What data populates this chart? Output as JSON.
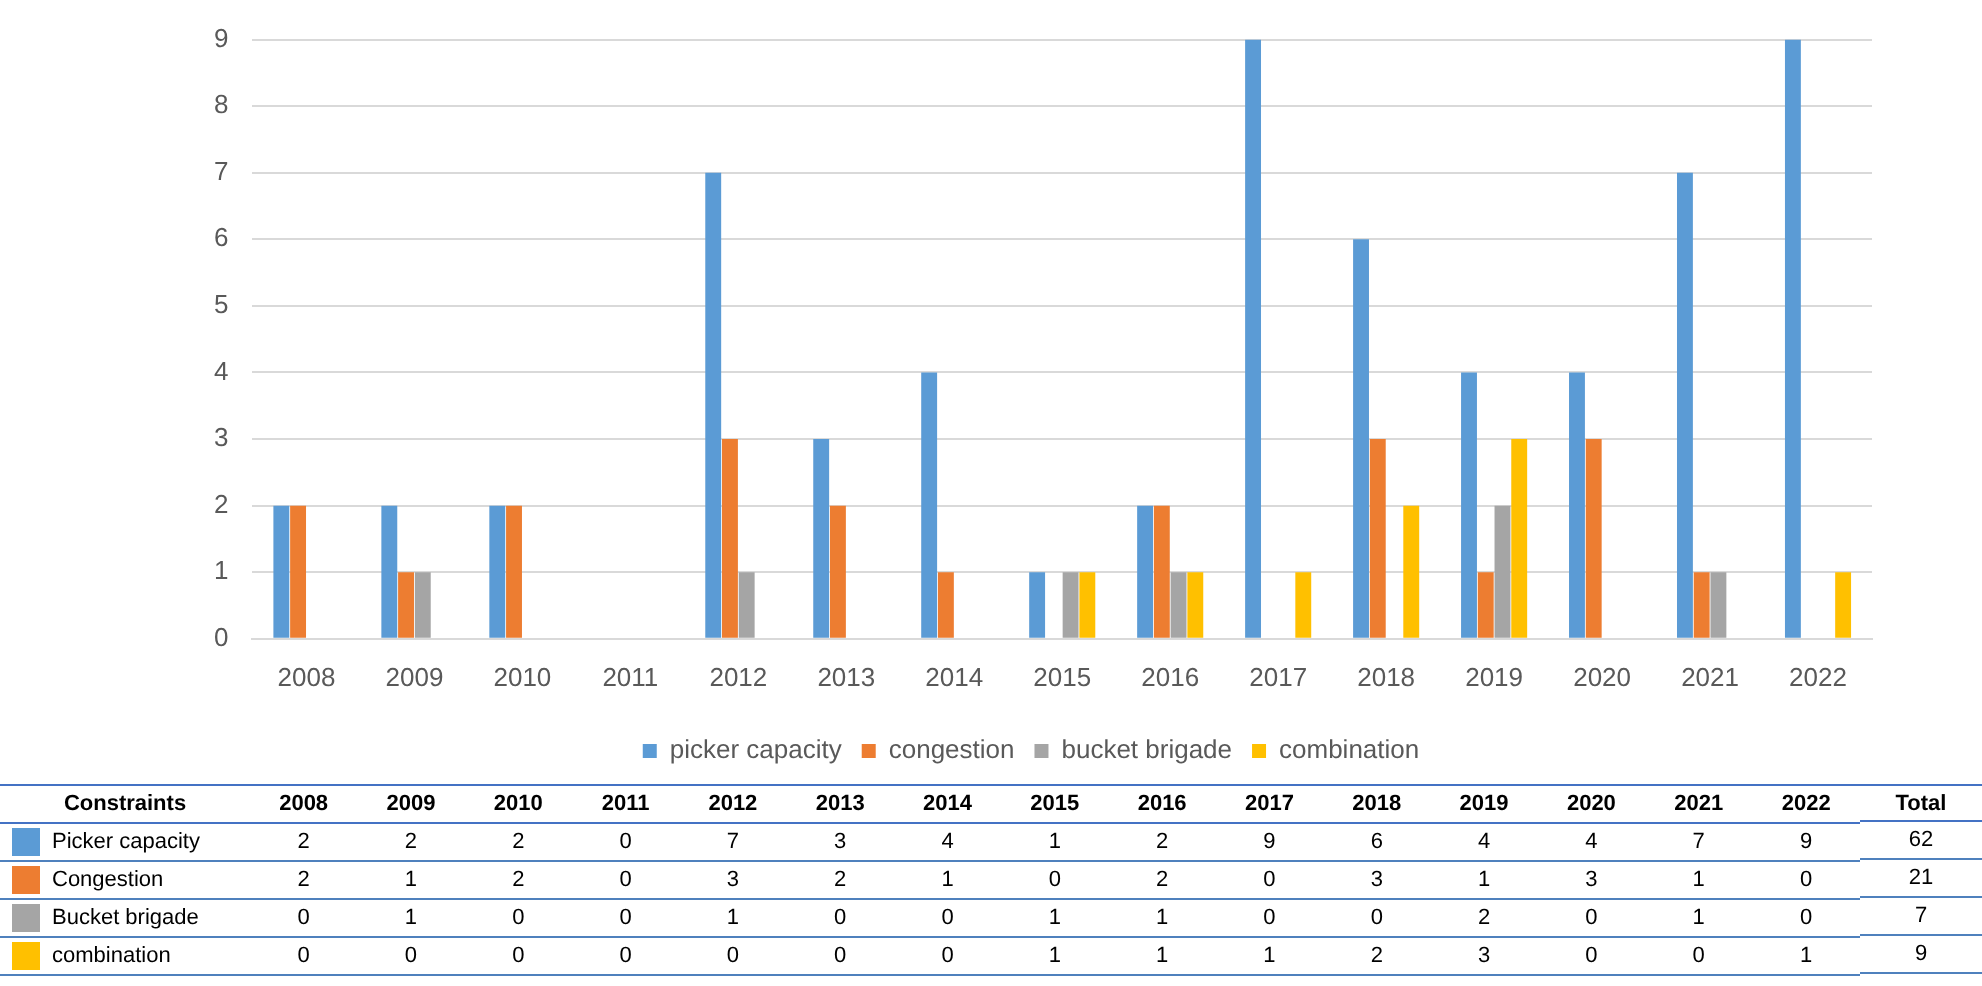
{
  "chart_data": {
    "type": "bar",
    "categories": [
      "2008",
      "2009",
      "2010",
      "2011",
      "2012",
      "2013",
      "2014",
      "2015",
      "2016",
      "2017",
      "2018",
      "2019",
      "2020",
      "2021",
      "2022"
    ],
    "series": [
      {
        "name": "picker capacity",
        "color": "#5b9bd5",
        "values": [
          2,
          2,
          2,
          0,
          7,
          3,
          4,
          1,
          2,
          9,
          6,
          4,
          4,
          7,
          9
        ]
      },
      {
        "name": "congestion",
        "color": "#ed7d31",
        "values": [
          2,
          1,
          2,
          0,
          3,
          2,
          1,
          0,
          2,
          0,
          3,
          1,
          3,
          1,
          0
        ]
      },
      {
        "name": "bucket brigade",
        "color": "#a5a5a5",
        "values": [
          0,
          1,
          0,
          0,
          1,
          0,
          0,
          1,
          1,
          0,
          0,
          2,
          0,
          1,
          0
        ]
      },
      {
        "name": "combination",
        "color": "#ffc000",
        "values": [
          0,
          0,
          0,
          0,
          0,
          0,
          0,
          1,
          1,
          1,
          2,
          3,
          0,
          0,
          1
        ]
      }
    ],
    "ylim": [
      0,
      9
    ],
    "yticks": [
      0,
      1,
      2,
      3,
      4,
      5,
      6,
      7,
      8,
      9
    ],
    "grid": "y",
    "legend": "bottom",
    "data_labels": true,
    "annotations": [
      "Constraints",
      "Total",
      "Picker capacity",
      "Congestion",
      "Bucket brigade",
      "combination",
      "62",
      "21",
      "7",
      "9"
    ]
  }
}
